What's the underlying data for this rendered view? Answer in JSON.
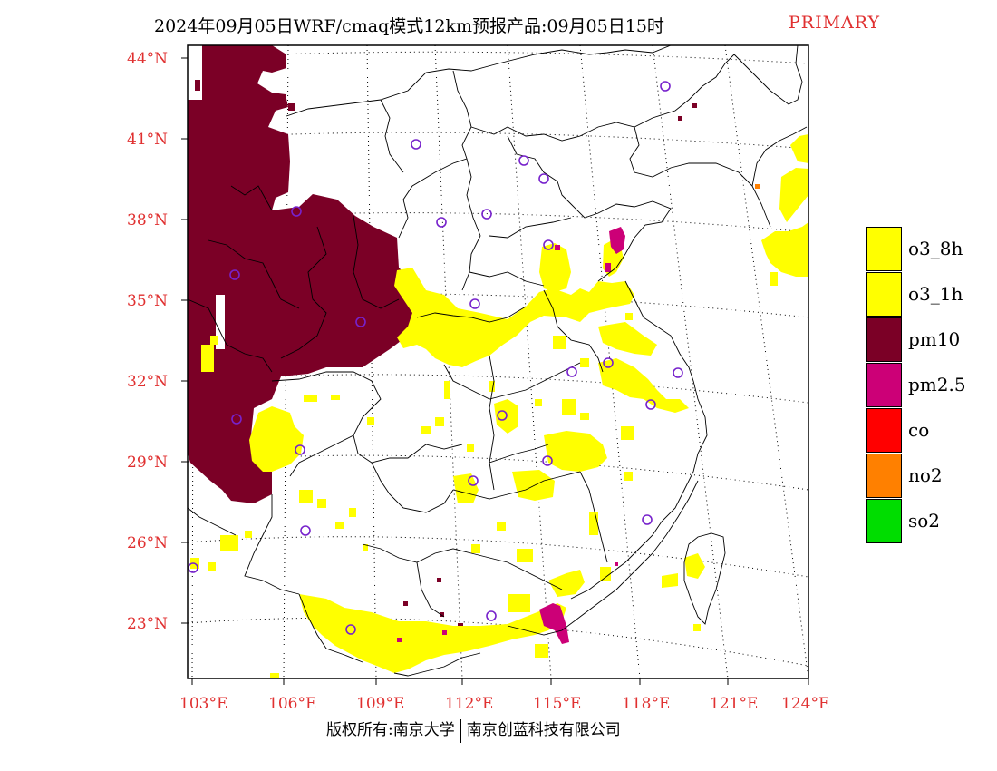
{
  "title": {
    "text": "2024年09月05日WRF/cmaq模式12km预报产品:09月05日15时",
    "tag": "PRIMARY"
  },
  "lat_labels": [
    "44°N",
    "41°N",
    "38°N",
    "35°N",
    "32°N",
    "29°N",
    "26°N",
    "23°N"
  ],
  "lon_labels": [
    "103°E",
    "106°E",
    "109°E",
    "112°E",
    "115°E",
    "118°E",
    "121°E",
    "124°E"
  ],
  "legend": [
    {
      "label": "o3_8h",
      "color": "#ffff00"
    },
    {
      "label": "o3_1h",
      "color": "#ffff00"
    },
    {
      "label": "pm10",
      "color": "#7b0026"
    },
    {
      "label": "pm2.5",
      "color": "#cc0077"
    },
    {
      "label": "co",
      "color": "#ff0000"
    },
    {
      "label": "no2",
      "color": "#ff8000"
    },
    {
      "label": "so2",
      "color": "#00dd00"
    }
  ],
  "footer": {
    "left": "版权所有:南京大学",
    "right": "南京创蓝科技有限公司"
  }
}
